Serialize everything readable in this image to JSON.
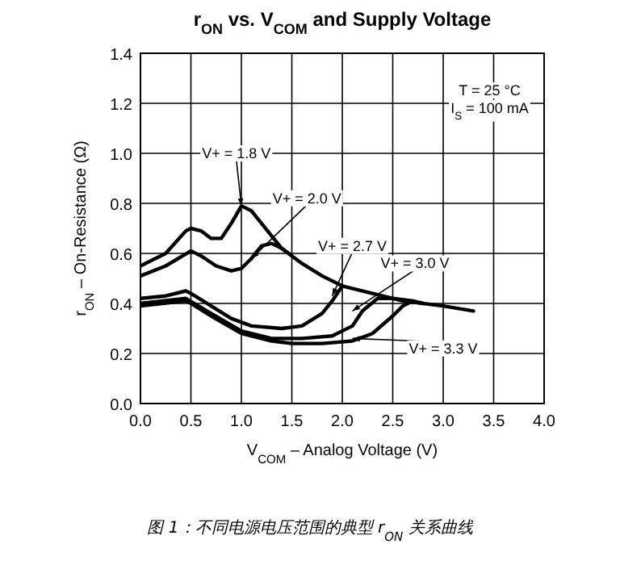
{
  "chart_data": {
    "type": "line",
    "title": "r$_{ON}$ vs. V$_{COM}$ and Supply Voltage",
    "xlabel": "V$_{COM}$ – Analog Voltage (V)",
    "ylabel": "r$_{ON}$ – On-Resistance (Ω)",
    "xlim": [
      0,
      4
    ],
    "xticks": [
      {
        "value": 0,
        "label": "0.0"
      },
      {
        "value": 0.5,
        "label": "0.5"
      },
      {
        "value": 1,
        "label": "1.0"
      },
      {
        "value": 1.5,
        "label": "1.5"
      },
      {
        "value": 2,
        "label": "2.0"
      },
      {
        "value": 2.5,
        "label": "2.5"
      },
      {
        "value": 3,
        "label": "3.0"
      },
      {
        "value": 3.5,
        "label": "3.5"
      },
      {
        "value": 4,
        "label": "4.0"
      }
    ],
    "ylim": [
      0,
      1.4
    ],
    "yticks": [
      {
        "value": 0,
        "label": "0.0"
      },
      {
        "value": 0.2,
        "label": "0.2"
      },
      {
        "value": 0.4,
        "label": "0.4"
      },
      {
        "value": 0.6,
        "label": "0.6"
      },
      {
        "value": 0.8,
        "label": "0.8"
      },
      {
        "value": 1,
        "label": "1.0"
      },
      {
        "value": 1.2,
        "label": "1.2"
      },
      {
        "value": 1.4,
        "label": "1.4"
      }
    ],
    "grid": true,
    "marker": "none",
    "line_style": "solid",
    "series": [
      {
        "color": "#000000",
        "x": [
          0,
          0.25,
          0.45,
          0.5,
          0.6,
          0.7,
          0.8,
          0.9,
          1.0,
          1.1,
          1.2,
          1.4,
          1.6,
          1.8,
          2.0,
          2.3,
          2.6,
          3.0,
          3.3
        ],
        "values": [
          0.55,
          0.6,
          0.69,
          0.7,
          0.69,
          0.66,
          0.66,
          0.72,
          0.79,
          0.77,
          0.72,
          0.62,
          0.56,
          0.51,
          0.47,
          0.44,
          0.41,
          0.39,
          0.37
        ]
      },
      {
        "color": "#000000",
        "x": [
          0,
          0.25,
          0.5,
          0.6,
          0.75,
          0.9,
          1.0,
          1.1,
          1.2,
          1.3,
          1.4,
          1.5
        ],
        "values": [
          0.51,
          0.55,
          0.61,
          0.59,
          0.55,
          0.53,
          0.54,
          0.58,
          0.63,
          0.64,
          0.62,
          0.59
        ]
      },
      {
        "color": "#000000",
        "x": [
          0,
          0.25,
          0.45,
          0.5,
          0.7,
          0.9,
          1.1,
          1.4,
          1.6,
          1.8,
          1.9,
          2.0
        ],
        "values": [
          0.42,
          0.43,
          0.45,
          0.44,
          0.39,
          0.34,
          0.31,
          0.3,
          0.31,
          0.36,
          0.41,
          0.47
        ]
      },
      {
        "color": "#000000",
        "x": [
          0,
          0.45,
          0.7,
          1.0,
          1.3,
          1.6,
          1.9,
          2.1,
          2.2,
          2.35,
          2.5,
          2.7
        ],
        "values": [
          0.4,
          0.42,
          0.36,
          0.29,
          0.26,
          0.26,
          0.27,
          0.31,
          0.37,
          0.42,
          0.42,
          0.41
        ]
      },
      {
        "color": "#000000",
        "x": [
          0,
          0.45,
          0.5,
          0.7,
          1.0,
          1.3,
          1.5,
          1.8,
          2.1,
          2.3,
          2.5,
          2.6,
          2.7,
          2.8
        ],
        "values": [
          0.39,
          0.41,
          0.4,
          0.35,
          0.28,
          0.25,
          0.24,
          0.24,
          0.25,
          0.28,
          0.35,
          0.39,
          0.41,
          0.4
        ]
      }
    ],
    "annotations": [
      "T = 25 °C",
      "I$_{S}$ = 100 mA",
      {
        "text": "V+ = 1.8 V",
        "x": 1.0,
        "y": 0.79
      },
      {
        "text": "V+ = 2.0 V",
        "x": 1.1,
        "y": 0.58
      },
      {
        "text": "V+ = 2.7 V",
        "x": 1.9,
        "y": 0.43
      },
      {
        "text": "V+ = 3.0 V",
        "x": 2.1,
        "y": 0.37
      },
      {
        "text": "V+ = 3.3 V",
        "x": 2.1,
        "y": 0.26
      },
      "图 1：不同电源电压范围的典型 r$_{ON}$ 关系曲线"
    ]
  }
}
